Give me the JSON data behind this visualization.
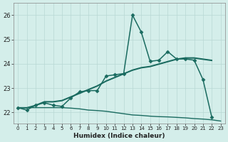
{
  "xlabel": "Humidex (Indice chaleur)",
  "background_color": "#d4eeea",
  "grid_color": "#b8d8d4",
  "line_color": "#1a6b60",
  "xlim": [
    -0.5,
    23.5
  ],
  "ylim": [
    21.55,
    26.5
  ],
  "yticks": [
    22,
    23,
    24,
    25,
    26
  ],
  "xticks": [
    0,
    1,
    2,
    3,
    4,
    5,
    6,
    7,
    8,
    9,
    10,
    11,
    12,
    13,
    14,
    15,
    16,
    17,
    18,
    19,
    20,
    21,
    22,
    23
  ],
  "series": [
    {
      "x": [
        0,
        1,
        2,
        3,
        4,
        5,
        6,
        7,
        8,
        9,
        10,
        11,
        12,
        13,
        14,
        15,
        16,
        17,
        18,
        19,
        20,
        21,
        22
      ],
      "y": [
        22.2,
        22.1,
        22.3,
        22.4,
        22.3,
        22.25,
        22.6,
        22.85,
        22.9,
        22.9,
        23.5,
        23.55,
        23.6,
        26.0,
        25.3,
        24.1,
        24.15,
        24.5,
        24.2,
        24.2,
        24.15,
        23.35,
        21.8
      ],
      "marker": "D",
      "markersize": 2.5,
      "linewidth": 1.1
    },
    {
      "x": [
        0,
        1,
        2,
        3,
        4,
        5,
        6,
        7,
        8,
        9,
        10,
        11,
        12,
        13,
        14,
        15,
        16,
        17,
        18,
        19,
        20,
        21,
        22
      ],
      "y": [
        22.2,
        22.2,
        22.3,
        22.45,
        22.45,
        22.5,
        22.65,
        22.8,
        22.95,
        23.1,
        23.3,
        23.45,
        23.6,
        23.75,
        23.85,
        23.9,
        24.0,
        24.1,
        24.2,
        24.25,
        24.25,
        24.2,
        24.15
      ],
      "marker": null,
      "markersize": 0,
      "linewidth": 1.0
    },
    {
      "x": [
        0,
        1,
        2,
        3,
        4,
        5,
        6,
        7,
        8,
        9,
        10,
        11,
        12,
        13,
        14,
        15,
        16,
        17,
        18,
        19,
        20,
        21,
        22
      ],
      "y": [
        22.2,
        22.18,
        22.28,
        22.43,
        22.43,
        22.48,
        22.63,
        22.78,
        22.93,
        23.08,
        23.28,
        23.43,
        23.58,
        23.73,
        23.83,
        23.88,
        23.98,
        24.08,
        24.18,
        24.23,
        24.23,
        24.18,
        24.13
      ],
      "marker": null,
      "markersize": 0,
      "linewidth": 1.0
    },
    {
      "x": [
        0,
        1,
        2,
        3,
        4,
        5,
        6,
        7,
        8,
        9,
        10,
        11,
        12,
        13,
        14,
        15,
        16,
        17,
        18,
        19,
        20,
        21,
        22,
        23
      ],
      "y": [
        22.2,
        22.2,
        22.2,
        22.2,
        22.2,
        22.2,
        22.18,
        22.15,
        22.1,
        22.08,
        22.05,
        22.0,
        21.95,
        21.9,
        21.88,
        21.85,
        21.83,
        21.82,
        21.8,
        21.78,
        21.75,
        21.73,
        21.7,
        21.65
      ],
      "marker": null,
      "markersize": 0,
      "linewidth": 1.0
    }
  ]
}
